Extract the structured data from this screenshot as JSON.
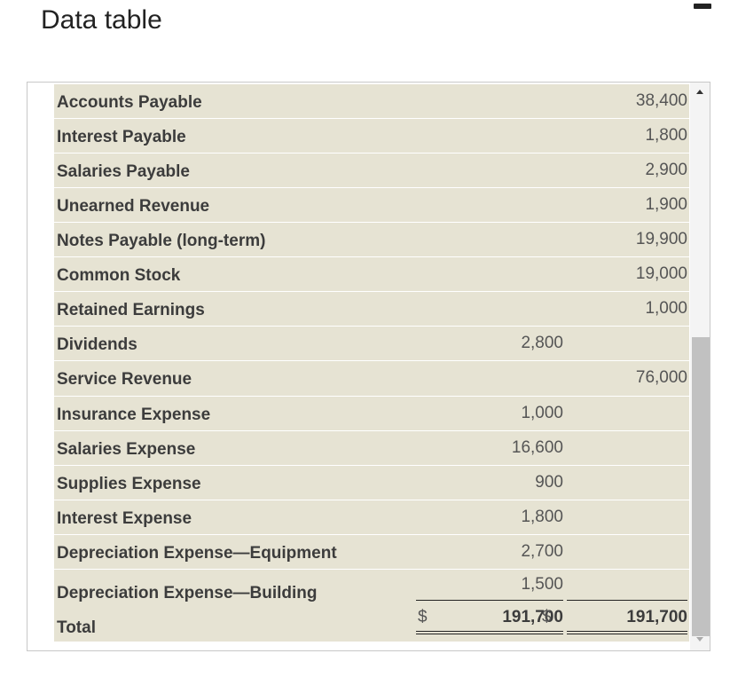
{
  "window": {
    "title": "Data table"
  },
  "table": {
    "rows": [
      {
        "account": "Accounts Payable",
        "debit": "",
        "credit": "38,400"
      },
      {
        "account": "Interest Payable",
        "debit": "",
        "credit": "1,800"
      },
      {
        "account": "Salaries Payable",
        "debit": "",
        "credit": "2,900"
      },
      {
        "account": "Unearned Revenue",
        "debit": "",
        "credit": "1,900"
      },
      {
        "account": "Notes Payable (long-term)",
        "debit": "",
        "credit": "19,900"
      },
      {
        "account": "Common Stock",
        "debit": "",
        "credit": "19,000"
      },
      {
        "account": "Retained Earnings",
        "debit": "",
        "credit": "1,000"
      },
      {
        "account": "Dividends",
        "debit": "2,800",
        "credit": ""
      },
      {
        "account": "Service Revenue",
        "debit": "",
        "credit": "76,000"
      },
      {
        "account": "Insurance Expense",
        "debit": "1,000",
        "credit": ""
      },
      {
        "account": "Salaries Expense",
        "debit": "16,600",
        "credit": ""
      },
      {
        "account": "Supplies Expense",
        "debit": "900",
        "credit": ""
      },
      {
        "account": "Interest Expense",
        "debit": "1,800",
        "credit": ""
      },
      {
        "account": "Depreciation Expense—Equipment",
        "debit": "2,700",
        "credit": ""
      },
      {
        "account": "Depreciation Expense—Building",
        "debit": "1,500",
        "credit": ""
      }
    ],
    "total": {
      "label": "Total",
      "debit_currency": "$",
      "debit": "191,700",
      "credit_currency": "$",
      "credit": "191,700"
    }
  }
}
